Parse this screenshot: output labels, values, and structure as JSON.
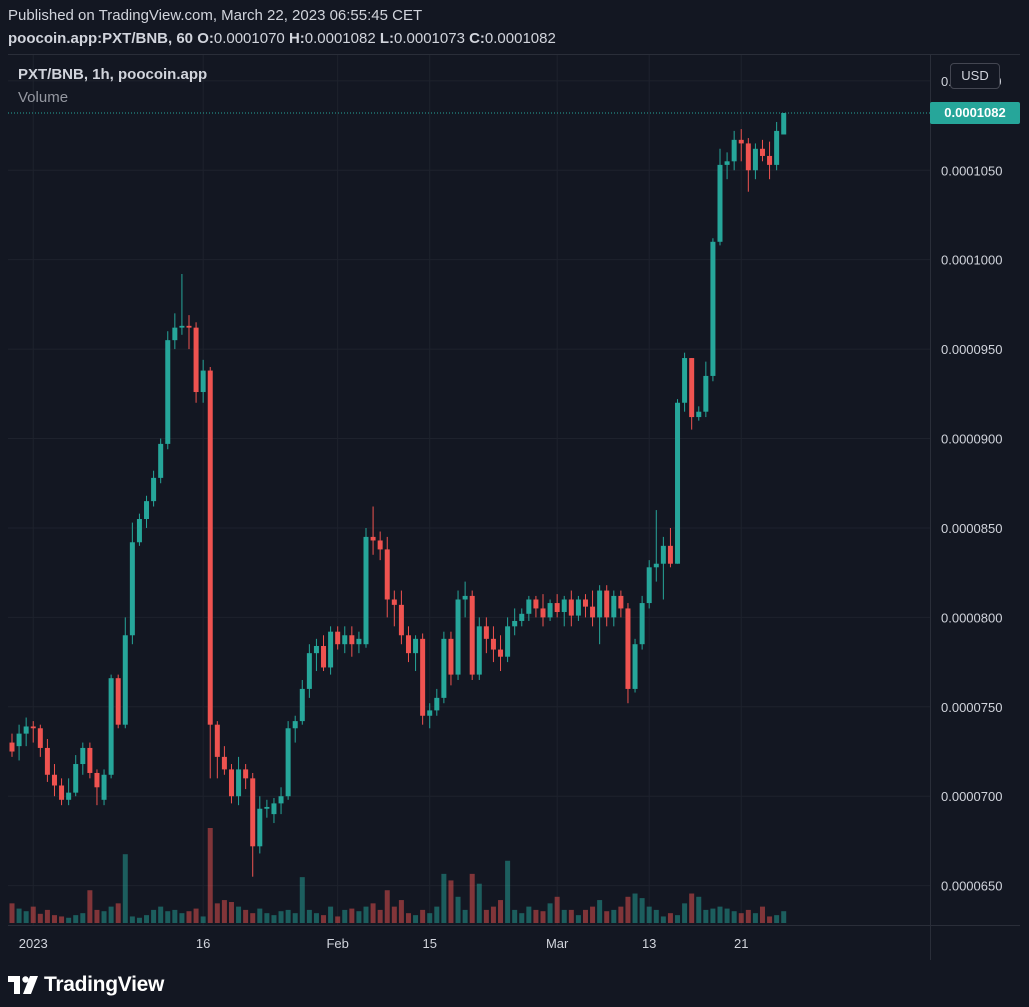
{
  "header": {
    "published": "Published on TradingView.com, March 22, 2023 06:55:45 CET",
    "symbol_line": "poocoin.app:PXT/BNB, 60",
    "open_label": "O:",
    "open": "0.0001070",
    "high_label": "H:",
    "high": "0.0001082",
    "low_label": "L:",
    "low": "0.0001073",
    "close_label": "C:",
    "close": "0.0001082"
  },
  "legend": {
    "title": "PXT/BNB, 1h, poocoin.app",
    "volume": "Volume"
  },
  "currency": "USD",
  "last_price_label": "0.0001082",
  "brand": {
    "name": "TradingView"
  },
  "colors": {
    "up": "#26a69a",
    "down": "#ef5350",
    "background": "#131722",
    "grid": "#1e222d"
  },
  "chart_data": {
    "type": "candlestick",
    "y_axis": {
      "range": [
        6.28e-05,
        0.0001115
      ],
      "ticks": [
        "0.0000650",
        "0.0000700",
        "0.0000750",
        "0.0000800",
        "0.0000850",
        "0.0000900",
        "0.0000950",
        "0.0001000",
        "0.0001050",
        "0.0001100"
      ]
    },
    "x_axis": {
      "ticks": [
        {
          "label": "2023",
          "index": 3
        },
        {
          "label": "16",
          "index": 27
        },
        {
          "label": "Feb",
          "index": 46
        },
        {
          "label": "15",
          "index": 59
        },
        {
          "label": "Mar",
          "index": 77
        },
        {
          "label": "13",
          "index": 90
        },
        {
          "label": "21",
          "index": 103
        }
      ]
    },
    "last_price": 0.0001082,
    "candles": [
      [
        7.3e-05,
        7.35e-05,
        7.22e-05,
        7.25e-05,
        30
      ],
      [
        7.28e-05,
        7.4e-05,
        7.2e-05,
        7.35e-05,
        22
      ],
      [
        7.35e-05,
        7.44e-05,
        7.28e-05,
        7.39e-05,
        18
      ],
      [
        7.39e-05,
        7.42e-05,
        7.3e-05,
        7.38e-05,
        25
      ],
      [
        7.38e-05,
        7.4e-05,
        7.22e-05,
        7.27e-05,
        14
      ],
      [
        7.27e-05,
        7.32e-05,
        7.08e-05,
        7.12e-05,
        20
      ],
      [
        7.12e-05,
        7.18e-05,
        7e-05,
        7.06e-05,
        12
      ],
      [
        7.06e-05,
        7.1e-05,
        6.95e-05,
        6.98e-05,
        10
      ],
      [
        6.98e-05,
        7.1e-05,
        6.95e-05,
        7.02e-05,
        8
      ],
      [
        7.02e-05,
        7.23e-05,
        7e-05,
        7.18e-05,
        12
      ],
      [
        7.18e-05,
        7.3e-05,
        7.12e-05,
        7.27e-05,
        15
      ],
      [
        7.27e-05,
        7.3e-05,
        7.1e-05,
        7.13e-05,
        50
      ],
      [
        7.13e-05,
        7.15e-05,
        6.95e-05,
        7.05e-05,
        20
      ],
      [
        6.98e-05,
        7.15e-05,
        6.95e-05,
        7.12e-05,
        18
      ],
      [
        7.12e-05,
        7.68e-05,
        7.1e-05,
        7.66e-05,
        25
      ],
      [
        7.66e-05,
        7.68e-05,
        7.38e-05,
        7.4e-05,
        30
      ],
      [
        7.4e-05,
        8e-05,
        7.38e-05,
        7.9e-05,
        105
      ],
      [
        7.9e-05,
        8.53e-05,
        7.85e-05,
        8.42e-05,
        10
      ],
      [
        8.42e-05,
        8.58e-05,
        8.4e-05,
        8.55e-05,
        8
      ],
      [
        8.55e-05,
        8.68e-05,
        8.5e-05,
        8.65e-05,
        12
      ],
      [
        8.65e-05,
        8.82e-05,
        8.62e-05,
        8.78e-05,
        20
      ],
      [
        8.78e-05,
        9e-05,
        8.75e-05,
        8.97e-05,
        25
      ],
      [
        8.97e-05,
        9.6e-05,
        8.94e-05,
        9.55e-05,
        18
      ],
      [
        9.55e-05,
        9.7e-05,
        9.5e-05,
        9.62e-05,
        20
      ],
      [
        9.62e-05,
        9.92e-05,
        9.58e-05,
        9.63e-05,
        15
      ],
      [
        9.63e-05,
        9.69e-05,
        9.5e-05,
        9.62e-05,
        18
      ],
      [
        9.62e-05,
        9.65e-05,
        9.2e-05,
        9.26e-05,
        22
      ],
      [
        9.26e-05,
        9.44e-05,
        9.2e-05,
        9.38e-05,
        10
      ],
      [
        9.38e-05,
        9.4e-05,
        7.1e-05,
        7.4e-05,
        145
      ],
      [
        7.4e-05,
        7.42e-05,
        7.1e-05,
        7.22e-05,
        30
      ],
      [
        7.22e-05,
        7.28e-05,
        7.12e-05,
        7.15e-05,
        35
      ],
      [
        7.15e-05,
        7.18e-05,
        6.96e-05,
        7e-05,
        32
      ],
      [
        7e-05,
        7.22e-05,
        6.95e-05,
        7.15e-05,
        25
      ],
      [
        7.15e-05,
        7.18e-05,
        7.04e-05,
        7.1e-05,
        20
      ],
      [
        7.1e-05,
        7.13e-05,
        6.55e-05,
        6.72e-05,
        15
      ],
      [
        6.72e-05,
        7e-05,
        6.68e-05,
        6.93e-05,
        22
      ],
      [
        6.93e-05,
        6.98e-05,
        6.88e-05,
        6.94e-05,
        15
      ],
      [
        6.9e-05,
        6.99e-05,
        6.85e-05,
        6.96e-05,
        12
      ],
      [
        6.96e-05,
        7.05e-05,
        6.9e-05,
        7e-05,
        18
      ],
      [
        7e-05,
        7.42e-05,
        6.98e-05,
        7.38e-05,
        20
      ],
      [
        7.38e-05,
        7.45e-05,
        7.3e-05,
        7.42e-05,
        15
      ],
      [
        7.42e-05,
        7.65e-05,
        7.4e-05,
        7.6e-05,
        70
      ],
      [
        7.6e-05,
        7.85e-05,
        7.55e-05,
        7.8e-05,
        20
      ],
      [
        7.8e-05,
        7.88e-05,
        7.7e-05,
        7.84e-05,
        15
      ],
      [
        7.84e-05,
        7.9e-05,
        7.7e-05,
        7.72e-05,
        12
      ],
      [
        7.72e-05,
        7.95e-05,
        7.68e-05,
        7.92e-05,
        25
      ],
      [
        7.92e-05,
        7.95e-05,
        7.82e-05,
        7.85e-05,
        10
      ],
      [
        7.85e-05,
        7.95e-05,
        7.8e-05,
        7.9e-05,
        20
      ],
      [
        7.9e-05,
        7.95e-05,
        7.78e-05,
        7.85e-05,
        22
      ],
      [
        7.85e-05,
        7.92e-05,
        7.8e-05,
        7.88e-05,
        18
      ],
      [
        7.85e-05,
        8.5e-05,
        7.83e-05,
        8.45e-05,
        25
      ],
      [
        8.45e-05,
        8.62e-05,
        8.35e-05,
        8.43e-05,
        30
      ],
      [
        8.43e-05,
        8.48e-05,
        8.32e-05,
        8.38e-05,
        20
      ],
      [
        8.38e-05,
        8.45e-05,
        8e-05,
        8.1e-05,
        50
      ],
      [
        8.1e-05,
        8.15e-05,
        7.95e-05,
        8.07e-05,
        25
      ],
      [
        8.07e-05,
        8.15e-05,
        7.85e-05,
        7.9e-05,
        35
      ],
      [
        7.9e-05,
        7.95e-05,
        7.75e-05,
        7.8e-05,
        15
      ],
      [
        7.8e-05,
        7.9e-05,
        7.7e-05,
        7.88e-05,
        12
      ],
      [
        7.88e-05,
        7.91e-05,
        7.4e-05,
        7.45e-05,
        20
      ],
      [
        7.45e-05,
        7.52e-05,
        7.38e-05,
        7.48e-05,
        15
      ],
      [
        7.48e-05,
        7.6e-05,
        7.45e-05,
        7.55e-05,
        25
      ],
      [
        7.55e-05,
        7.92e-05,
        7.52e-05,
        7.88e-05,
        75
      ],
      [
        7.88e-05,
        7.92e-05,
        7.62e-05,
        7.68e-05,
        65
      ],
      [
        7.68e-05,
        8.15e-05,
        7.65e-05,
        8.1e-05,
        40
      ],
      [
        8.1e-05,
        8.2e-05,
        8e-05,
        8.12e-05,
        20
      ],
      [
        8.12e-05,
        8.15e-05,
        7.65e-05,
        7.68e-05,
        75
      ],
      [
        7.68e-05,
        8e-05,
        7.65e-05,
        7.95e-05,
        60
      ],
      [
        7.95e-05,
        8e-05,
        7.8e-05,
        7.88e-05,
        20
      ],
      [
        7.88e-05,
        7.95e-05,
        7.75e-05,
        7.82e-05,
        25
      ],
      [
        7.82e-05,
        7.9e-05,
        7.7e-05,
        7.78e-05,
        35
      ],
      [
        7.78e-05,
        8e-05,
        7.75e-05,
        7.95e-05,
        95
      ],
      [
        7.95e-05,
        8.05e-05,
        7.9e-05,
        7.98e-05,
        20
      ],
      [
        7.98e-05,
        8.05e-05,
        7.95e-05,
        8.02e-05,
        15
      ],
      [
        8.02e-05,
        8.12e-05,
        7.98e-05,
        8.1e-05,
        25
      ],
      [
        8.1e-05,
        8.12e-05,
        8e-05,
        8.05e-05,
        20
      ],
      [
        8.05e-05,
        8.13e-05,
        7.95e-05,
        8e-05,
        18
      ],
      [
        8e-05,
        8.1e-05,
        7.98e-05,
        8.08e-05,
        30
      ],
      [
        8.08e-05,
        8.13e-05,
        8e-05,
        8.03e-05,
        40
      ],
      [
        8.03e-05,
        8.12e-05,
        7.95e-05,
        8.1e-05,
        20
      ],
      [
        8.1e-05,
        8.15e-05,
        7.95e-05,
        8.01e-05,
        20
      ],
      [
        8.01e-05,
        8.12e-05,
        7.98e-05,
        8.1e-05,
        12
      ],
      [
        8.1e-05,
        8.13e-05,
        8e-05,
        8.06e-05,
        20
      ],
      [
        8.06e-05,
        8.15e-05,
        7.95e-05,
        8e-05,
        25
      ],
      [
        8e-05,
        8.18e-05,
        7.85e-05,
        8.15e-05,
        35
      ],
      [
        8.15e-05,
        8.18e-05,
        7.95e-05,
        8e-05,
        18
      ],
      [
        8e-05,
        8.15e-05,
        7.95e-05,
        8.12e-05,
        20
      ],
      [
        8.12e-05,
        8.15e-05,
        8e-05,
        8.05e-05,
        25
      ],
      [
        8.05e-05,
        8.08e-05,
        7.52e-05,
        7.6e-05,
        40
      ],
      [
        7.6e-05,
        7.88e-05,
        7.58e-05,
        7.85e-05,
        45
      ],
      [
        7.85e-05,
        8.12e-05,
        7.82e-05,
        8.08e-05,
        38
      ],
      [
        8.08e-05,
        8.32e-05,
        8.05e-05,
        8.28e-05,
        25
      ],
      [
        8.28e-05,
        8.6e-05,
        8.2e-05,
        8.3e-05,
        20
      ],
      [
        8.3e-05,
        8.45e-05,
        8.1e-05,
        8.4e-05,
        10
      ],
      [
        8.4e-05,
        8.5e-05,
        8.28e-05,
        8.3e-05,
        15
      ],
      [
        8.3e-05,
        9.22e-05,
        8.3e-05,
        9.2e-05,
        12
      ],
      [
        9.2e-05,
        9.48e-05,
        9.15e-05,
        9.45e-05,
        30
      ],
      [
        9.45e-05,
        9.45e-05,
        9.05e-05,
        9.12e-05,
        45
      ],
      [
        9.12e-05,
        9.18e-05,
        9.1e-05,
        9.15e-05,
        40
      ],
      [
        9.15e-05,
        9.43e-05,
        9.12e-05,
        9.35e-05,
        20
      ],
      [
        9.35e-05,
        0.0001012,
        9.32e-05,
        0.000101,
        22
      ],
      [
        0.000101,
        0.0001062,
        0.0001008,
        0.0001053,
        25
      ],
      [
        0.0001053,
        0.000106,
        0.0001045,
        0.0001055,
        22
      ],
      [
        0.0001055,
        0.0001072,
        0.000105,
        0.0001067,
        18
      ],
      [
        0.0001067,
        0.0001073,
        0.0001055,
        0.0001065,
        15
      ],
      [
        0.0001065,
        0.0001068,
        0.0001038,
        0.000105,
        20
      ],
      [
        0.000105,
        0.0001065,
        0.0001045,
        0.0001062,
        15
      ],
      [
        0.0001062,
        0.0001067,
        0.0001055,
        0.0001058,
        25
      ],
      [
        0.0001058,
        0.0001066,
        0.0001045,
        0.0001053,
        10
      ],
      [
        0.0001053,
        0.0001077,
        0.000105,
        0.0001072,
        12
      ],
      [
        0.000107,
        0.0001082,
        0.0001073,
        0.0001082,
        18
      ]
    ]
  }
}
